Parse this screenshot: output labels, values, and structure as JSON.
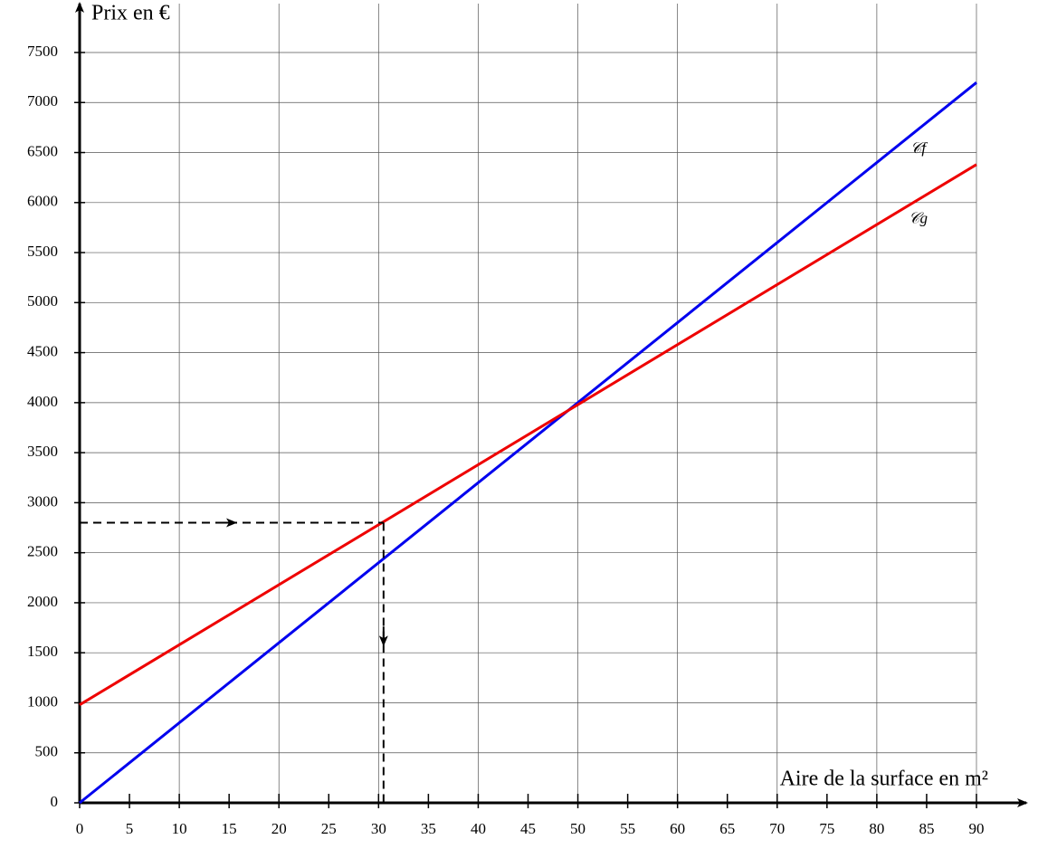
{
  "chart_data": {
    "type": "line",
    "x_label": "Aire de la surface en m²",
    "y_label": "Prix en €",
    "x": [
      0,
      90
    ],
    "series": [
      {
        "name": "𝒞f",
        "color": "#0000ee",
        "values": [
          0,
          7200
        ]
      },
      {
        "name": "𝒞g",
        "color": "#ee0000",
        "values": [
          980,
          6380
        ]
      }
    ],
    "guide": {
      "x": 30.5,
      "y": 2800
    },
    "xlim": [
      0,
      90
    ],
    "ylim": [
      0,
      7500
    ],
    "xticks": [
      0,
      5,
      10,
      15,
      20,
      25,
      30,
      35,
      40,
      45,
      50,
      55,
      60,
      65,
      70,
      75,
      80,
      85,
      90
    ],
    "yticks": [
      0,
      500,
      1000,
      1500,
      2000,
      2500,
      3000,
      3500,
      4000,
      4500,
      5000,
      5500,
      6000,
      6500,
      7000,
      7500
    ],
    "grid": true
  }
}
